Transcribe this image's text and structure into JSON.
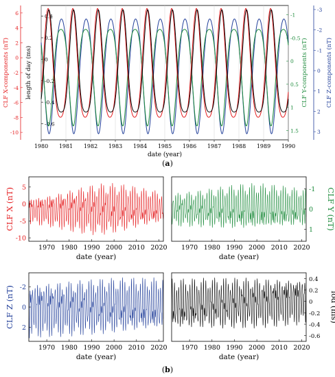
{
  "captions": {
    "a": "a",
    "b": "b"
  },
  "colors": {
    "x": "#e41a1c",
    "y": "#1b8a3a",
    "z": "#1f3d99",
    "lod": "#000000",
    "axis": "#000000"
  },
  "chart_data": [
    {
      "id": "a",
      "type": "line",
      "xlabel": "date (year)",
      "xlim": [
        1980,
        1990
      ],
      "xticks": [
        1980,
        1981,
        1982,
        1983,
        1984,
        1985,
        1986,
        1987,
        1988,
        1989,
        1990
      ],
      "grid": true,
      "axes": [
        {
          "name": "x",
          "label": "CLF X-components (nT)",
          "side": "left-outer",
          "ylim": [
            -11,
            7
          ],
          "ticks": [
            6,
            4,
            2,
            0,
            -2,
            -4,
            -6,
            -8,
            -10
          ],
          "reversed": false
        },
        {
          "name": "lod",
          "label": "length of day (ms)",
          "side": "left-inner",
          "ylim": [
            -0.75,
            0.5
          ],
          "ticks": [
            0.4,
            0.2,
            0,
            -0.2,
            -0.4,
            -0.6
          ],
          "reversed": false
        },
        {
          "name": "y",
          "label": "CLF Y-components (nT)",
          "side": "right-inner",
          "ylim": [
            -1.2,
            1.7
          ],
          "ticks": [
            -1,
            -0.5,
            0,
            0.5,
            1,
            1.5
          ],
          "reversed": true
        },
        {
          "name": "z",
          "label": "CLF Z-components (nT)",
          "side": "right-outer",
          "ylim": [
            -3.2,
            3.4
          ],
          "ticks": [
            -3,
            -2,
            -1,
            0,
            1,
            2,
            3
          ],
          "reversed": true
        }
      ],
      "series": [
        {
          "axis": "x",
          "period": 1,
          "phase": 0.28,
          "mean": -2.0,
          "amp": 8.6,
          "ripple": 0.18
        },
        {
          "axis": "lod",
          "period": 1,
          "phase": 0.31,
          "mean": -0.12,
          "amp": 0.58,
          "ripple": 0.22
        },
        {
          "axis": "y",
          "period": 1,
          "phase": 0.3,
          "mean": 0.15,
          "amp": 1.25,
          "ripple": 0.2
        },
        {
          "axis": "z",
          "period": 1,
          "phase": 0.32,
          "mean": 0.0,
          "amp": 3.1,
          "ripple": 0.1
        }
      ]
    },
    {
      "id": "b1",
      "type": "line",
      "ylabel": "CLF X (nT)",
      "xlabel": "date (year)",
      "xlim": [
        1962,
        2022
      ],
      "xticks": [
        1970,
        1980,
        1990,
        2000,
        2010,
        2020
      ],
      "ylim": [
        -11,
        8
      ],
      "yticks": [
        5,
        0,
        -5,
        -10
      ],
      "reversed": false,
      "series": [
        {
          "axis": "x",
          "period": 1,
          "mean_start": -1.5,
          "mean_end": -1.5,
          "amp_start": 4.0,
          "amp_mid": 8.5,
          "amp_end": 4.2,
          "mid_year": 1995
        }
      ]
    },
    {
      "id": "b2",
      "type": "line",
      "ylabel": "CLF Y (nT)",
      "xlabel": "date (year)",
      "xlim": [
        1962,
        2022
      ],
      "xticks": [
        1970,
        1980,
        1990,
        2000,
        2010,
        2020
      ],
      "ylim": [
        -1.6,
        1.6
      ],
      "yticks": [
        -1,
        0,
        1
      ],
      "reversed": true,
      "series": [
        {
          "axis": "y",
          "period": 1,
          "mean_start": 0.0,
          "mean_end": 0.0,
          "amp_start": 0.9,
          "amp_mid": 1.3,
          "amp_end": 0.9,
          "mid_year": 1998
        }
      ]
    },
    {
      "id": "b3",
      "type": "line",
      "ylabel": "CLF Z (nT)",
      "xlabel": "date (year)",
      "xlim": [
        1962,
        2022
      ],
      "xticks": [
        1970,
        1980,
        1990,
        2000,
        2010,
        2020
      ],
      "ylim": [
        -3.4,
        3.4
      ],
      "yticks": [
        -2,
        0,
        2
      ],
      "reversed": true,
      "series": [
        {
          "axis": "z",
          "period": 1,
          "mean_start": 0.0,
          "mean_end": 0.0,
          "amp_start": 3.1,
          "amp_mid": 3.1,
          "amp_end": 2.9,
          "mid_year": 1990
        }
      ]
    },
    {
      "id": "b4",
      "type": "line",
      "ylabel": "lod (ms)",
      "xlabel": "date (year)",
      "xlim": [
        1962,
        2022
      ],
      "xticks": [
        1970,
        1980,
        1990,
        2000,
        2010,
        2020
      ],
      "ylim": [
        -0.7,
        0.5
      ],
      "yticks": [
        0.4,
        0.2,
        0,
        -0.2,
        -0.4,
        -0.6
      ],
      "reversed": false,
      "series": [
        {
          "axis": "lod",
          "period": 1,
          "mean_start": -0.1,
          "mean_end": 0.05,
          "amp_start": 0.5,
          "amp_mid": 0.5,
          "amp_end": 0.45,
          "mid_year": 1990
        }
      ]
    }
  ]
}
